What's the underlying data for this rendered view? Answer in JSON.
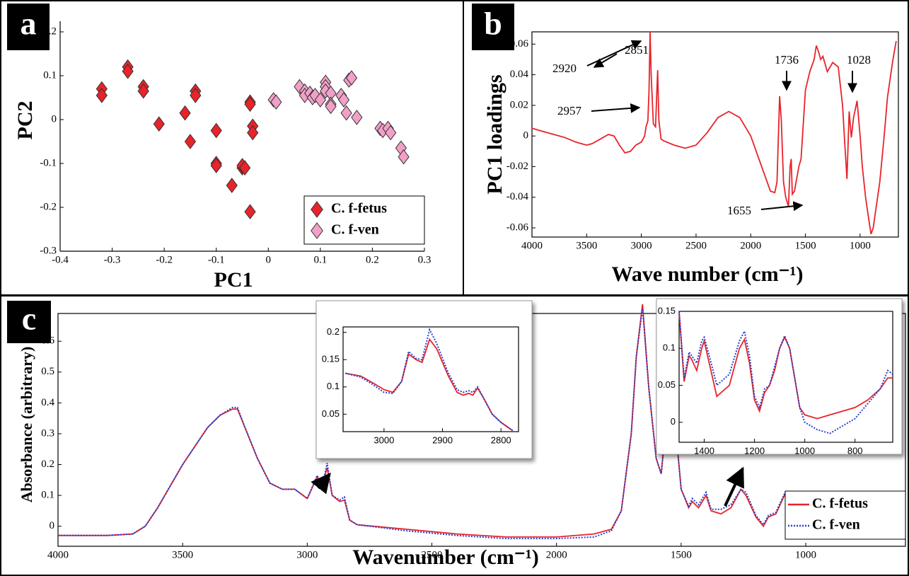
{
  "chart_data": [
    {
      "type": "scatter",
      "panel_label": "a",
      "xlabel": "PC1",
      "ylabel": "PC2",
      "xlim": [
        -0.4,
        0.3
      ],
      "ylim": [
        -0.3,
        0.2
      ],
      "xticks": [
        -0.4,
        -0.3,
        -0.2,
        -0.1,
        0,
        0.1,
        0.2,
        0.3
      ],
      "yticks": [
        -0.3,
        -0.2,
        -0.1,
        0,
        0.1,
        0.2
      ],
      "legend": "lower right",
      "series": [
        {
          "name": "C. f-fetus",
          "color": "#e8232a",
          "x": [
            -0.32,
            -0.32,
            -0.27,
            -0.27,
            -0.24,
            -0.24,
            -0.21,
            -0.16,
            -0.15,
            -0.14,
            -0.14,
            -0.1,
            -0.1,
            -0.1,
            -0.07,
            -0.05,
            -0.05,
            -0.045,
            -0.035,
            -0.035,
            -0.035,
            -0.03,
            -0.03
          ],
          "values": [
            0.07,
            0.055,
            0.12,
            0.11,
            0.075,
            0.065,
            -0.01,
            0.015,
            -0.05,
            0.065,
            0.055,
            -0.025,
            -0.1,
            -0.105,
            -0.15,
            -0.11,
            -0.105,
            -0.11,
            0.04,
            0.035,
            -0.21,
            -0.015,
            -0.03
          ]
        },
        {
          "name": "C. f-ven",
          "color": "#f2a0c8",
          "x": [
            0.01,
            0.015,
            0.06,
            0.07,
            0.07,
            0.08,
            0.085,
            0.09,
            0.1,
            0.11,
            0.11,
            0.11,
            0.12,
            0.12,
            0.12,
            0.14,
            0.145,
            0.15,
            0.155,
            0.16,
            0.17,
            0.215,
            0.22,
            0.23,
            0.235,
            0.255,
            0.26
          ],
          "values": [
            0.045,
            0.04,
            0.075,
            0.065,
            0.055,
            0.06,
            0.05,
            0.055,
            0.045,
            0.085,
            0.075,
            0.065,
            0.06,
            0.035,
            0.03,
            0.055,
            0.045,
            0.015,
            0.09,
            0.095,
            0.005,
            -0.02,
            -0.025,
            -0.02,
            -0.03,
            -0.065,
            -0.085
          ]
        }
      ]
    },
    {
      "type": "line",
      "panel_label": "b",
      "xlabel": "Wave number (cm⁻¹)",
      "ylabel": "PC1 loadings",
      "xlim": [
        4000,
        650
      ],
      "ylim": [
        -0.066,
        0.068
      ],
      "xticks": [
        4000,
        3500,
        3000,
        2500,
        2000,
        1500,
        1000
      ],
      "yticks": [
        -0.06,
        -0.04,
        -0.02,
        0,
        0.02,
        0.04,
        0.06
      ],
      "color": "#e8232a",
      "annotations": [
        "2920",
        "2851",
        "2957",
        "1736",
        "1028",
        "1655"
      ],
      "x": [
        4000,
        3900,
        3800,
        3700,
        3600,
        3500,
        3450,
        3400,
        3350,
        3300,
        3250,
        3200,
        3150,
        3100,
        3050,
        3000,
        2970,
        2957,
        2940,
        2930,
        2920,
        2910,
        2890,
        2870,
        2851,
        2840,
        2820,
        2800,
        2700,
        2600,
        2500,
        2400,
        2300,
        2200,
        2100,
        2000,
        1900,
        1820,
        1780,
        1760,
        1736,
        1720,
        1700,
        1680,
        1655,
        1640,
        1630,
        1620,
        1600,
        1560,
        1540,
        1500,
        1460,
        1420,
        1400,
        1380,
        1360,
        1340,
        1300,
        1250,
        1200,
        1160,
        1140,
        1120,
        1100,
        1080,
        1060,
        1028,
        1000,
        980,
        950,
        920,
        900,
        880,
        860,
        820,
        780,
        750,
        700,
        670
      ],
      "values": [
        0.005,
        0.003,
        0.001,
        -0.001,
        -0.004,
        -0.006,
        -0.005,
        -0.003,
        -0.001,
        0.001,
        0.0,
        -0.006,
        -0.011,
        -0.01,
        -0.006,
        -0.004,
        0.0,
        0.006,
        0.01,
        0.03,
        0.068,
        0.04,
        0.008,
        0.006,
        0.043,
        0.01,
        -0.002,
        -0.003,
        -0.006,
        -0.008,
        -0.006,
        0.002,
        0.012,
        0.016,
        0.012,
        0.0,
        -0.02,
        -0.036,
        -0.037,
        -0.03,
        0.026,
        0.01,
        -0.03,
        -0.04,
        -0.046,
        -0.02,
        -0.015,
        -0.038,
        -0.036,
        -0.02,
        -0.015,
        0.03,
        0.042,
        0.05,
        0.059,
        0.055,
        0.05,
        0.052,
        0.042,
        0.048,
        0.045,
        0.02,
        -0.005,
        -0.028,
        0.016,
        -0.001,
        0.012,
        0.023,
        0.0,
        -0.02,
        -0.04,
        -0.055,
        -0.064,
        -0.06,
        -0.05,
        -0.03,
        0.0,
        0.025,
        0.05,
        0.062
      ]
    },
    {
      "type": "line",
      "panel_label": "c",
      "xlabel": "Wavenumber (cm⁻¹)",
      "ylabel": "Absorbance (arbitrary)",
      "xlim": [
        4000,
        600
      ],
      "ylim": [
        -0.065,
        0.69
      ],
      "xticks": [
        4000,
        3500,
        3000,
        2500,
        2000,
        1500,
        1000
      ],
      "yticks": [
        0,
        0.1,
        0.2,
        0.3,
        0.4,
        0.5,
        0.6
      ],
      "legend": "lower right",
      "x": [
        4000,
        3800,
        3700,
        3650,
        3600,
        3500,
        3400,
        3350,
        3300,
        3280,
        3250,
        3200,
        3150,
        3100,
        3050,
        3000,
        2960,
        2940,
        2920,
        2900,
        2870,
        2851,
        2830,
        2800,
        2600,
        2400,
        2200,
        2000,
        1850,
        1780,
        1740,
        1700,
        1680,
        1655,
        1630,
        1600,
        1580,
        1545,
        1520,
        1500,
        1470,
        1455,
        1430,
        1400,
        1380,
        1340,
        1300,
        1260,
        1240,
        1200,
        1170,
        1150,
        1120,
        1080,
        1050,
        1000,
        950,
        900,
        850,
        800,
        750,
        700,
        650,
        600
      ],
      "series": [
        {
          "name": "C. f-fetus",
          "color": "#e8232a",
          "dash": "solid",
          "values": [
            -0.03,
            -0.03,
            -0.025,
            0.0,
            0.06,
            0.2,
            0.32,
            0.36,
            0.38,
            0.38,
            0.32,
            0.22,
            0.14,
            0.12,
            0.12,
            0.09,
            0.16,
            0.13,
            0.19,
            0.1,
            0.08,
            0.085,
            0.02,
            0.005,
            -0.01,
            -0.025,
            -0.035,
            -0.035,
            -0.025,
            -0.01,
            0.05,
            0.3,
            0.55,
            0.72,
            0.45,
            0.22,
            0.17,
            0.46,
            0.3,
            0.12,
            0.06,
            0.08,
            0.06,
            0.1,
            0.05,
            0.04,
            0.06,
            0.12,
            0.1,
            0.03,
            0.0,
            0.03,
            0.04,
            0.11,
            0.08,
            0.01,
            0.0,
            0.005,
            0.015,
            0.03,
            0.04,
            0.05,
            0.06,
            0.04
          ]
        },
        {
          "name": "C. f-ven",
          "color": "#2b3fc9",
          "dash": "dotted",
          "values": [
            -0.03,
            -0.03,
            -0.025,
            0.0,
            0.06,
            0.2,
            0.32,
            0.36,
            0.385,
            0.385,
            0.32,
            0.22,
            0.14,
            0.12,
            0.12,
            0.09,
            0.165,
            0.13,
            0.205,
            0.1,
            0.085,
            0.095,
            0.02,
            0.005,
            -0.015,
            -0.03,
            -0.04,
            -0.04,
            -0.035,
            -0.015,
            0.05,
            0.3,
            0.55,
            0.71,
            0.45,
            0.22,
            0.17,
            0.46,
            0.3,
            0.12,
            0.065,
            0.09,
            0.07,
            0.11,
            0.055,
            0.055,
            0.07,
            0.12,
            0.11,
            0.035,
            0.005,
            0.035,
            0.045,
            0.115,
            0.08,
            0.005,
            -0.015,
            -0.025,
            -0.015,
            0.0,
            0.02,
            0.04,
            0.065,
            0.06
          ]
        }
      ]
    },
    {
      "type": "line",
      "xlim": [
        3070,
        2770
      ],
      "ylim": [
        0.018,
        0.21
      ],
      "xticks": [
        3000,
        2900,
        2800
      ],
      "yticks": [
        0.05,
        0.1,
        0.15,
        0.2
      ],
      "x": [
        3066,
        3040,
        3020,
        3000,
        2985,
        2970,
        2958,
        2945,
        2935,
        2922,
        2910,
        2890,
        2875,
        2865,
        2855,
        2848,
        2840,
        2830,
        2815,
        2800,
        2780
      ],
      "series": [
        {
          "color": "#e8232a",
          "dash": "solid",
          "values": [
            0.125,
            0.12,
            0.108,
            0.095,
            0.09,
            0.11,
            0.16,
            0.15,
            0.145,
            0.187,
            0.17,
            0.12,
            0.09,
            0.085,
            0.088,
            0.085,
            0.098,
            0.08,
            0.05,
            0.035,
            0.02
          ]
        },
        {
          "color": "#2b3fc9",
          "dash": "dotted",
          "values": [
            0.125,
            0.118,
            0.105,
            0.09,
            0.088,
            0.11,
            0.165,
            0.152,
            0.15,
            0.205,
            0.18,
            0.125,
            0.095,
            0.09,
            0.093,
            0.09,
            0.1,
            0.08,
            0.05,
            0.035,
            0.02
          ]
        }
      ]
    },
    {
      "type": "line",
      "xlim": [
        1500,
        650
      ],
      "ylim": [
        -0.027,
        0.15
      ],
      "xticks": [
        1400,
        1200,
        1000,
        800
      ],
      "yticks": [
        0,
        0.05,
        0.1,
        0.15
      ],
      "x": [
        1500,
        1480,
        1460,
        1450,
        1430,
        1410,
        1400,
        1380,
        1350,
        1300,
        1260,
        1240,
        1220,
        1200,
        1180,
        1160,
        1140,
        1120,
        1100,
        1080,
        1060,
        1040,
        1020,
        1000,
        950,
        900,
        850,
        800,
        750,
        700,
        670,
        650
      ],
      "series": [
        {
          "color": "#e8232a",
          "dash": "solid",
          "values": [
            0.15,
            0.055,
            0.09,
            0.085,
            0.07,
            0.1,
            0.11,
            0.08,
            0.035,
            0.05,
            0.1,
            0.112,
            0.08,
            0.03,
            0.015,
            0.04,
            0.05,
            0.07,
            0.1,
            0.115,
            0.1,
            0.06,
            0.02,
            0.01,
            0.005,
            0.01,
            0.015,
            0.02,
            0.03,
            0.045,
            0.06,
            0.06
          ]
        },
        {
          "color": "#2b3fc9",
          "dash": "dotted",
          "values": [
            0.15,
            0.06,
            0.095,
            0.09,
            0.08,
            0.11,
            0.115,
            0.09,
            0.05,
            0.065,
            0.11,
            0.123,
            0.09,
            0.035,
            0.02,
            0.045,
            0.05,
            0.075,
            0.1,
            0.117,
            0.1,
            0.06,
            0.02,
            0.0,
            -0.01,
            -0.015,
            -0.005,
            0.005,
            0.025,
            0.045,
            0.07,
            0.065
          ]
        }
      ]
    }
  ]
}
